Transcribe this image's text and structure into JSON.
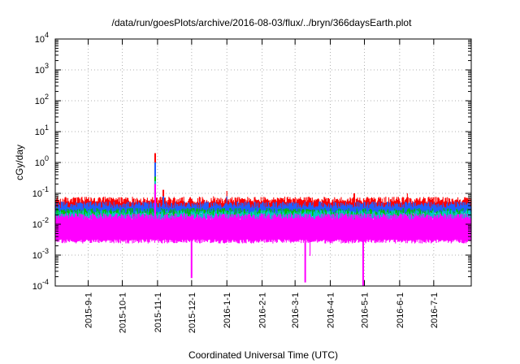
{
  "chart_data": {
    "type": "line",
    "title": "/data/run/goesPlots/archive/2016-08-03/flux/../bryn/366daysEarth.plot",
    "xlabel": "Coordinated Universal Time (UTC)",
    "ylabel": "cGy/day",
    "y_scale": "log",
    "ylim": [
      0.0001,
      10000
    ],
    "xlim": [
      "2015-08-03",
      "2016-08-03"
    ],
    "y_ticks": [
      {
        "base": "10",
        "exp": "-4",
        "value": 0.0001
      },
      {
        "base": "10",
        "exp": "-3",
        "value": 0.001
      },
      {
        "base": "10",
        "exp": "-2",
        "value": 0.01
      },
      {
        "base": "10",
        "exp": "-1",
        "value": 0.1
      },
      {
        "base": "10",
        "exp": "0",
        "value": 1
      },
      {
        "base": "10",
        "exp": "1",
        "value": 10
      },
      {
        "base": "10",
        "exp": "2",
        "value": 100
      },
      {
        "base": "10",
        "exp": "3",
        "value": 1000
      },
      {
        "base": "10",
        "exp": "4",
        "value": 10000
      }
    ],
    "x_ticks": [
      {
        "label": "2015-9-1",
        "date": "2015-09-01"
      },
      {
        "label": "2015-10-1",
        "date": "2015-10-01"
      },
      {
        "label": "2015-11-1",
        "date": "2015-11-01"
      },
      {
        "label": "2015-12-1",
        "date": "2015-12-01"
      },
      {
        "label": "2016-1-1",
        "date": "2016-01-01"
      },
      {
        "label": "2016-2-1",
        "date": "2016-02-01"
      },
      {
        "label": "2016-3-1",
        "date": "2016-03-01"
      },
      {
        "label": "2016-4-1",
        "date": "2016-04-01"
      },
      {
        "label": "2016-5-1",
        "date": "2016-05-01"
      },
      {
        "label": "2016-6-1",
        "date": "2016-06-01"
      },
      {
        "label": "2016-7-1",
        "date": "2016-07-01"
      }
    ],
    "grid": true,
    "series": [
      {
        "color": "#ff0000",
        "baseline": 0.04,
        "noise_low": 0.7,
        "noise_high": 1.5,
        "events": [
          {
            "date": "2015-10-30",
            "value": 2.0
          },
          {
            "date": "2015-11-06",
            "value": 0.13
          },
          {
            "date": "2016-01-01",
            "value": 0.12
          },
          {
            "date": "2015-12-20",
            "value": 0.08
          },
          {
            "date": "2016-04-22",
            "value": 0.1
          },
          {
            "date": "2016-06-08",
            "value": 0.1
          }
        ]
      },
      {
        "color": "#1f5fff",
        "baseline": 0.03,
        "noise_low": 0.7,
        "noise_high": 1.4,
        "events": [
          {
            "date": "2015-10-30",
            "value": 1.0
          },
          {
            "date": "2015-11-06",
            "value": 0.08
          },
          {
            "date": "2016-01-01",
            "value": 0.08
          }
        ]
      },
      {
        "color": "#00c000",
        "baseline": 0.02,
        "noise_low": 0.8,
        "noise_high": 1.3,
        "events": [
          {
            "date": "2015-10-30",
            "value": 0.35
          }
        ]
      },
      {
        "color": "#00c8c8",
        "baseline": 0.017,
        "noise_low": 0.8,
        "noise_high": 1.3,
        "events": [
          {
            "date": "2015-10-30",
            "value": 0.25
          }
        ]
      },
      {
        "color": "#ff00ff",
        "baseline": 0.008,
        "noise_low": 0.35,
        "noise_high": 2.2,
        "events": [
          {
            "date": "2015-10-30",
            "value": 0.2
          },
          {
            "date": "2015-12-01",
            "value": 0.00018
          },
          {
            "date": "2016-03-10",
            "value": 0.00013
          },
          {
            "date": "2016-03-14",
            "value": 0.00095
          },
          {
            "date": "2016-04-30",
            "value": 0.0001
          }
        ]
      }
    ]
  }
}
